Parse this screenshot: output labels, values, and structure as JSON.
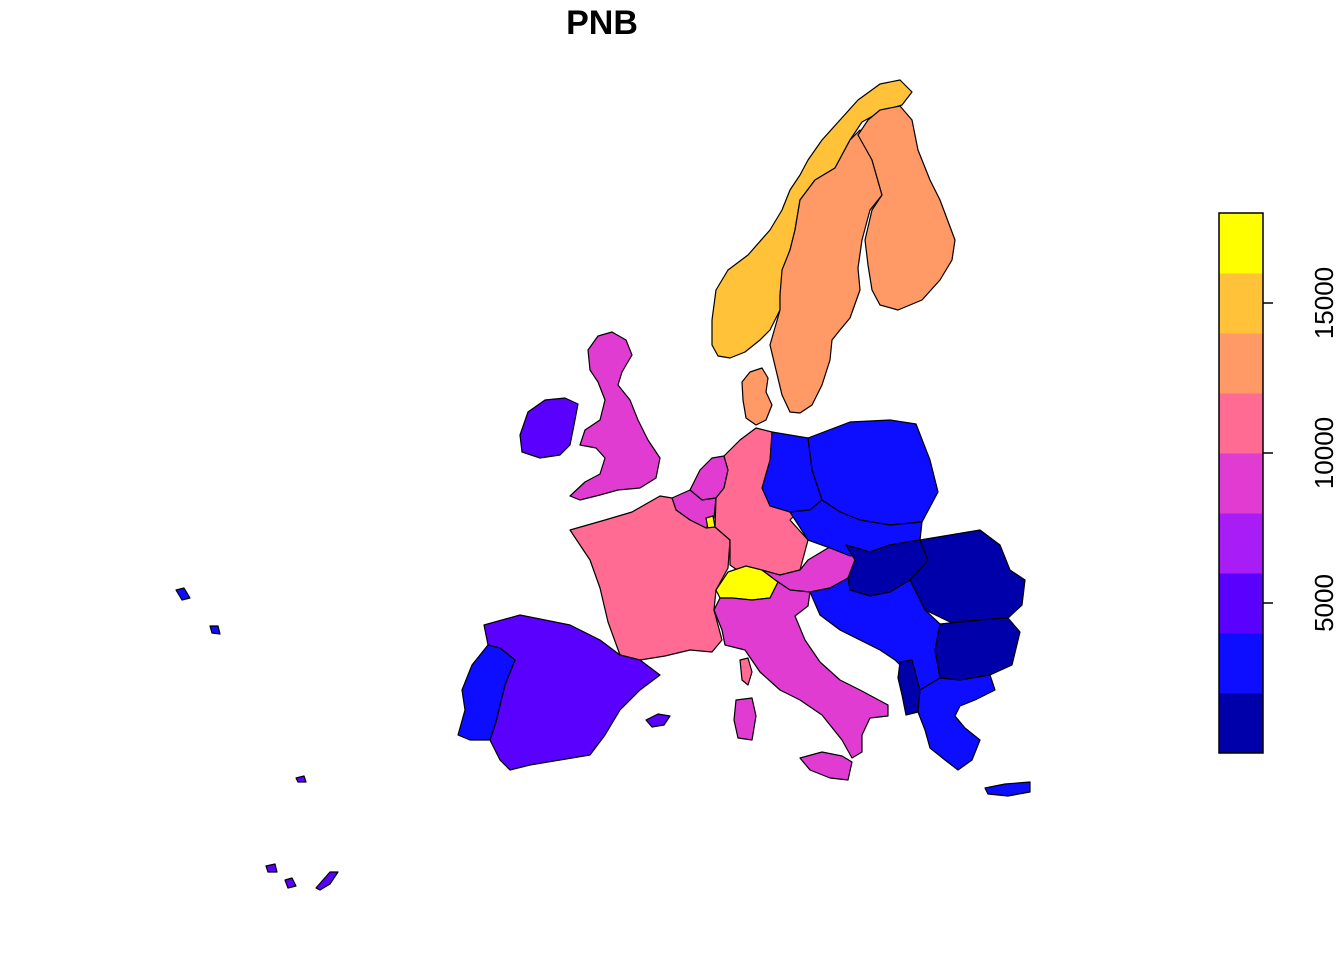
{
  "title": "PNB",
  "legend": {
    "ticks": [
      5000,
      10000,
      15000
    ],
    "tick_labels": [
      "5000",
      "10000",
      "15000"
    ],
    "range": [
      0,
      18000
    ],
    "orientation": "vertical",
    "placement": "right",
    "colors": [
      "#0000AA",
      "#0D0DFF",
      "#5A00FF",
      "#A81CF5",
      "#E03CD2",
      "#FF6B93",
      "#FF9966",
      "#FFC238",
      "#FFFF00"
    ]
  },
  "regions": [
    {
      "name": "Norway",
      "level": 7
    },
    {
      "name": "Sweden",
      "level": 6
    },
    {
      "name": "Finland",
      "level": 6
    },
    {
      "name": "Denmark",
      "level": 6
    },
    {
      "name": "United Kingdom",
      "level": 4
    },
    {
      "name": "Ireland",
      "level": 2
    },
    {
      "name": "Netherlands",
      "level": 4
    },
    {
      "name": "Belgium",
      "level": 4
    },
    {
      "name": "Luxembourg",
      "level": 8
    },
    {
      "name": "France",
      "level": 5
    },
    {
      "name": "Germany",
      "level": 5
    },
    {
      "name": "Switzerland",
      "level": 8
    },
    {
      "name": "Austria",
      "level": 4
    },
    {
      "name": "Italy",
      "level": 4
    },
    {
      "name": "Corsica",
      "level": 5
    },
    {
      "name": "Sardinia",
      "level": 4
    },
    {
      "name": "Sicily",
      "level": 4
    },
    {
      "name": "Spain",
      "level": 2
    },
    {
      "name": "Balearic Islands",
      "level": 2
    },
    {
      "name": "Portugal",
      "level": 1
    },
    {
      "name": "Poland",
      "level": 1
    },
    {
      "name": "Czech Republic",
      "level": 1
    },
    {
      "name": "Slovakia",
      "level": 1
    },
    {
      "name": "Hungary",
      "level": 0
    },
    {
      "name": "Romania",
      "level": 0
    },
    {
      "name": "Bulgaria",
      "level": 0
    },
    {
      "name": "Yugoslavia",
      "level": 1
    },
    {
      "name": "Albania",
      "level": 0
    },
    {
      "name": "Greece",
      "level": 1
    },
    {
      "name": "Crete",
      "level": 1
    },
    {
      "name": "Azores",
      "level": 1
    },
    {
      "name": "Madeira",
      "level": 2
    },
    {
      "name": "Canary Islands",
      "level": 2
    }
  ]
}
